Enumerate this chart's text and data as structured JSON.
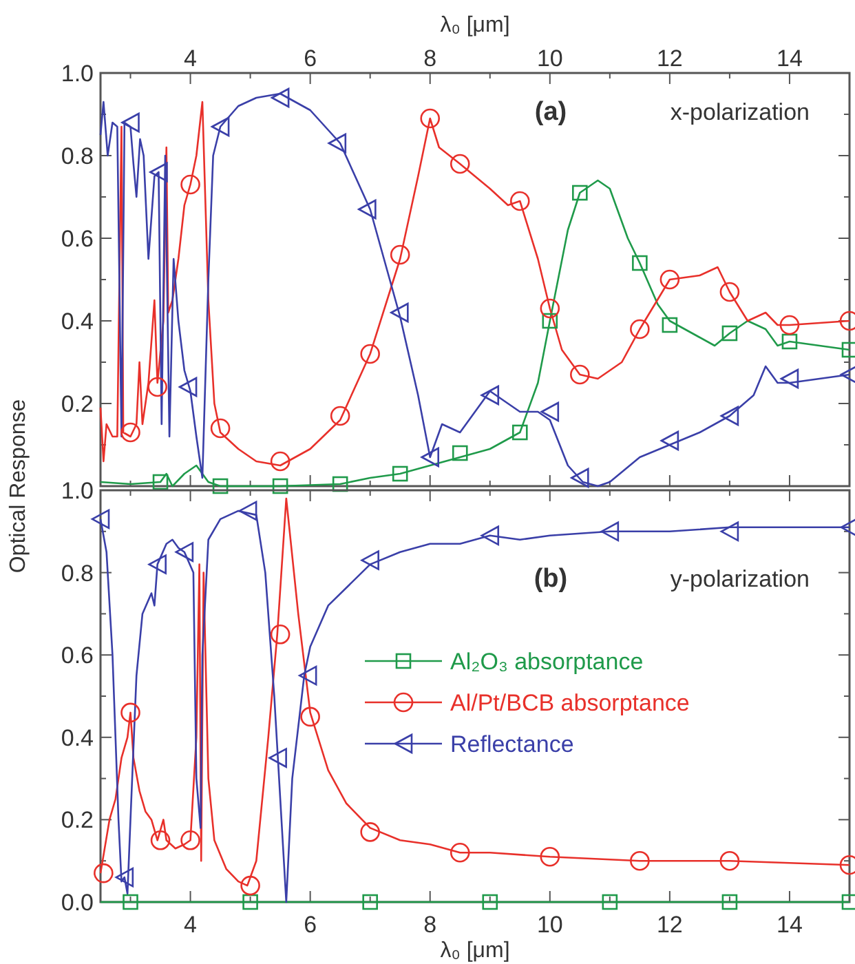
{
  "chart_data": [
    {
      "type": "line",
      "xlim": [
        2.5,
        15
      ],
      "xticks": [
        {
          "value": 3,
          "label": null
        },
        {
          "value": 4,
          "label": null
        },
        {
          "value": 5,
          "label": null
        },
        {
          "value": 6,
          "label": null
        },
        {
          "value": 7,
          "label": null
        },
        {
          "value": 8,
          "label": null
        },
        {
          "value": 9,
          "label": null
        },
        {
          "value": 10,
          "label": null
        },
        {
          "value": 11,
          "label": null
        },
        {
          "value": 12,
          "label": null
        },
        {
          "value": 13,
          "label": null
        },
        {
          "value": 14,
          "label": null
        }
      ],
      "x2lim": [
        2.5,
        15
      ],
      "x2ticks": [
        4,
        6,
        8,
        10,
        12,
        14
      ],
      "x2label": "λ₀ [μm]",
      "ylim": [
        0,
        1
      ],
      "yticks": [
        {
          "value": 0,
          "label": null
        },
        {
          "value": 0.1,
          "label": null
        },
        0.2,
        {
          "value": 0.3,
          "label": null
        },
        0.4,
        {
          "value": 0.5,
          "label": null
        },
        0.6,
        {
          "value": 0.7,
          "label": null
        },
        0.8,
        {
          "value": 0.9,
          "label": null
        },
        {
          "value": 1,
          "label": "1.0"
        }
      ],
      "ylabel": "Optical Response",
      "tick_labels": "y",
      "legend": false,
      "annotations": [
        "(a)",
        "x-polarization"
      ],
      "series": [
        {
          "color": "#1f9a4a",
          "x": [
            2.5,
            3.0,
            3.5,
            3.6,
            3.7,
            3.9,
            4.1,
            4.3,
            4.5,
            5.5,
            6.5,
            7.0,
            7.5,
            8.0,
            8.5,
            9.0,
            9.5,
            9.8,
            10.0,
            10.3,
            10.5,
            10.8,
            11.0,
            11.3,
            11.5,
            11.8,
            12.0,
            12.5,
            12.75,
            13.0,
            13.3,
            13.6,
            13.8,
            14.0,
            15.0
          ],
          "values": [
            0.01,
            0.005,
            0.01,
            0.03,
            0.0,
            0.03,
            0.05,
            0.01,
            0.0,
            0.0,
            0.005,
            0.02,
            0.03,
            0.05,
            0.07,
            0.09,
            0.13,
            0.25,
            0.4,
            0.62,
            0.71,
            0.74,
            0.72,
            0.6,
            0.54,
            0.44,
            0.4,
            0.36,
            0.34,
            0.37,
            0.4,
            0.38,
            0.34,
            0.35,
            0.33
          ]
        },
        {
          "color": "#e8302a",
          "x": [
            2.5,
            2.55,
            2.6,
            2.7,
            2.78,
            2.85,
            2.88,
            3.0,
            3.1,
            3.15,
            3.2,
            3.3,
            3.4,
            3.45,
            3.55,
            3.6,
            3.63,
            3.7,
            3.8,
            3.9,
            4.0,
            4.1,
            4.2,
            4.3,
            4.4,
            4.5,
            4.8,
            5.1,
            5.5,
            6.0,
            6.5,
            7.0,
            7.5,
            7.8,
            8.0,
            8.15,
            8.5,
            9.0,
            9.3,
            9.5,
            9.8,
            10.0,
            10.2,
            10.5,
            10.8,
            11.2,
            11.5,
            12.0,
            12.5,
            12.8,
            13.0,
            13.3,
            13.6,
            13.8,
            14.0,
            15.0
          ],
          "values": [
            0.19,
            0.06,
            0.15,
            0.12,
            0.12,
            0.87,
            0.13,
            0.12,
            0.15,
            0.3,
            0.15,
            0.25,
            0.45,
            0.25,
            0.4,
            0.82,
            0.42,
            0.45,
            0.55,
            0.68,
            0.73,
            0.8,
            0.93,
            0.45,
            0.2,
            0.13,
            0.09,
            0.06,
            0.05,
            0.09,
            0.16,
            0.32,
            0.55,
            0.75,
            0.89,
            0.82,
            0.78,
            0.72,
            0.68,
            0.69,
            0.55,
            0.43,
            0.33,
            0.27,
            0.26,
            0.3,
            0.38,
            0.5,
            0.51,
            0.53,
            0.47,
            0.4,
            0.42,
            0.39,
            0.39,
            0.4
          ]
        },
        {
          "color": "#3a3fa8",
          "x": [
            2.5,
            2.55,
            2.62,
            2.7,
            2.78,
            2.85,
            2.9,
            3.0,
            3.05,
            3.1,
            3.16,
            3.22,
            3.3,
            3.4,
            3.47,
            3.52,
            3.58,
            3.65,
            3.72,
            3.8,
            3.9,
            4.0,
            4.1,
            4.2,
            4.3,
            4.38,
            4.5,
            4.8,
            5.1,
            5.5,
            6.0,
            6.5,
            7.0,
            7.5,
            7.8,
            8.0,
            8.2,
            8.5,
            9.0,
            9.3,
            9.5,
            9.8,
            10.0,
            10.3,
            10.55,
            10.8,
            11.0,
            11.5,
            12.0,
            12.5,
            13.0,
            13.4,
            13.6,
            13.8,
            14.0,
            15.0
          ],
          "values": [
            0.85,
            0.93,
            0.8,
            0.88,
            0.87,
            0.12,
            0.88,
            0.87,
            0.78,
            0.7,
            0.84,
            0.8,
            0.55,
            0.75,
            0.76,
            0.15,
            0.8,
            0.12,
            0.55,
            0.4,
            0.28,
            0.23,
            0.12,
            0.02,
            0.5,
            0.8,
            0.87,
            0.92,
            0.94,
            0.95,
            0.91,
            0.83,
            0.67,
            0.41,
            0.22,
            0.07,
            0.15,
            0.13,
            0.23,
            0.2,
            0.18,
            0.18,
            0.16,
            0.05,
            0.01,
            0.0,
            0.01,
            0.07,
            0.1,
            0.13,
            0.17,
            0.22,
            0.29,
            0.25,
            0.25,
            0.27
          ]
        },
        {
          "color": "#1f9a4a",
          "type": "scatter",
          "marker": "square",
          "x": [
            3.5,
            4.5,
            5.5,
            6.5,
            7.5,
            8.5,
            9.5,
            10.0,
            10.5,
            11.5,
            12.0,
            13.0,
            14.0,
            15.0
          ],
          "values": [
            0.01,
            0.0,
            0.0,
            0.005,
            0.03,
            0.08,
            0.13,
            0.4,
            0.71,
            0.54,
            0.39,
            0.37,
            0.35,
            0.33
          ]
        },
        {
          "color": "#e8302a",
          "type": "scatter",
          "marker": "circle",
          "x": [
            3.0,
            3.45,
            4.0,
            4.5,
            5.5,
            6.5,
            7.0,
            7.5,
            8.0,
            8.5,
            9.5,
            10.0,
            10.5,
            11.5,
            12.0,
            13.0,
            14.0,
            15.0
          ],
          "values": [
            0.13,
            0.24,
            0.73,
            0.14,
            0.06,
            0.17,
            0.32,
            0.56,
            0.89,
            0.78,
            0.69,
            0.43,
            0.27,
            0.38,
            0.5,
            0.47,
            0.39,
            0.4
          ]
        },
        {
          "color": "#3a3fa8",
          "type": "scatter",
          "marker": "triangle",
          "x": [
            3.0,
            3.47,
            3.96,
            4.5,
            5.5,
            6.45,
            6.95,
            7.49,
            8.0,
            9.0,
            10.0,
            10.5,
            12.0,
            13.0,
            14.0,
            15.0
          ],
          "values": [
            0.88,
            0.76,
            0.24,
            0.87,
            0.94,
            0.83,
            0.67,
            0.42,
            0.07,
            0.22,
            0.18,
            0.02,
            0.11,
            0.17,
            0.26,
            0.27
          ]
        }
      ]
    },
    {
      "type": "line",
      "xlim": [
        2.5,
        15
      ],
      "xticks": [
        {
          "value": 3,
          "label": null
        },
        4,
        {
          "value": 5,
          "label": null
        },
        6,
        {
          "value": 7,
          "label": null
        },
        8,
        {
          "value": 9,
          "label": null
        },
        10,
        {
          "value": 11,
          "label": null
        },
        12,
        {
          "value": 13,
          "label": null
        },
        14
      ],
      "xlabel": "λ₀ [μm]",
      "ylim": [
        0,
        1
      ],
      "yticks": [
        {
          "value": 0,
          "label": "0.0"
        },
        {
          "value": 0.1,
          "label": null
        },
        0.2,
        {
          "value": 0.3,
          "label": null
        },
        0.4,
        {
          "value": 0.5,
          "label": null
        },
        0.6,
        {
          "value": 0.7,
          "label": null
        },
        0.8,
        {
          "value": 0.9,
          "label": null
        },
        {
          "value": 1,
          "label": "1.0"
        }
      ],
      "legend": "right",
      "annotations": [
        "(b)",
        "y-polarization"
      ],
      "series": [
        {
          "name": "Al₂O₃ absorptance",
          "color": "#1f9a4a",
          "x": [
            2.5,
            15.0
          ],
          "values": [
            0.0,
            0.0
          ]
        },
        {
          "name": "Al/Pt/BCB absorptance",
          "color": "#e8302a",
          "x": [
            2.5,
            2.65,
            2.75,
            2.85,
            2.95,
            3.0,
            3.05,
            3.15,
            3.25,
            3.35,
            3.45,
            3.55,
            3.6,
            3.75,
            3.9,
            4.0,
            4.1,
            4.15,
            4.18,
            4.22,
            4.3,
            4.4,
            4.6,
            4.8,
            4.95,
            5.1,
            5.3,
            5.45,
            5.6,
            5.8,
            6.0,
            6.3,
            6.6,
            7.0,
            7.5,
            8.0,
            8.5,
            9.0,
            10.0,
            11.5,
            13.0,
            15.0
          ],
          "values": [
            0.07,
            0.2,
            0.25,
            0.35,
            0.4,
            0.46,
            0.35,
            0.27,
            0.22,
            0.2,
            0.15,
            0.2,
            0.15,
            0.13,
            0.14,
            0.15,
            0.4,
            0.82,
            0.1,
            0.8,
            0.3,
            0.15,
            0.08,
            0.05,
            0.04,
            0.1,
            0.4,
            0.65,
            0.98,
            0.7,
            0.46,
            0.32,
            0.24,
            0.18,
            0.15,
            0.14,
            0.12,
            0.12,
            0.11,
            0.1,
            0.1,
            0.09
          ]
        },
        {
          "name": "Reflectance",
          "color": "#3a3fa8",
          "x": [
            2.5,
            2.6,
            2.7,
            2.8,
            2.85,
            2.9,
            2.95,
            3.0,
            3.1,
            3.2,
            3.35,
            3.4,
            3.45,
            3.6,
            3.7,
            3.8,
            3.9,
            4.05,
            4.1,
            4.17,
            4.2,
            4.3,
            4.5,
            4.8,
            5.1,
            5.25,
            5.4,
            5.46,
            5.6,
            5.7,
            5.9,
            6.0,
            6.3,
            7.0,
            7.5,
            8.0,
            8.5,
            9.0,
            9.5,
            10.0,
            11.0,
            12.0,
            13.0,
            15.0
          ],
          "values": [
            0.93,
            0.85,
            0.6,
            0.2,
            0.05,
            0.06,
            0.02,
            0.2,
            0.55,
            0.7,
            0.75,
            0.72,
            0.82,
            0.87,
            0.88,
            0.86,
            0.85,
            0.8,
            0.3,
            0.18,
            0.6,
            0.88,
            0.93,
            0.95,
            0.94,
            0.8,
            0.5,
            0.35,
            0.0,
            0.3,
            0.55,
            0.62,
            0.72,
            0.82,
            0.85,
            0.87,
            0.87,
            0.89,
            0.88,
            0.89,
            0.9,
            0.9,
            0.91,
            0.91
          ]
        },
        {
          "color": "#1f9a4a",
          "type": "scatter",
          "marker": "square",
          "x": [
            3.0,
            5.0,
            7.0,
            9.0,
            11.0,
            13.0,
            15.0
          ],
          "values": [
            0,
            0,
            0,
            0,
            0,
            0,
            0
          ]
        },
        {
          "color": "#e8302a",
          "type": "scatter",
          "marker": "circle",
          "x": [
            2.55,
            3.0,
            3.5,
            4.0,
            5.0,
            5.5,
            6.0,
            7.0,
            8.5,
            10.0,
            11.5,
            13.0,
            15.0
          ],
          "values": [
            0.07,
            0.46,
            0.15,
            0.15,
            0.04,
            0.65,
            0.45,
            0.17,
            0.12,
            0.11,
            0.1,
            0.1,
            0.09
          ]
        },
        {
          "color": "#3a3fa8",
          "type": "scatter",
          "marker": "triangle",
          "x": [
            2.5,
            2.9,
            3.45,
            3.9,
            4.96,
            5.46,
            5.96,
            7.0,
            9.0,
            11.0,
            13.0,
            15.0
          ],
          "values": [
            0.93,
            0.06,
            0.82,
            0.85,
            0.95,
            0.35,
            0.55,
            0.83,
            0.89,
            0.9,
            0.9,
            0.91
          ]
        }
      ]
    }
  ]
}
